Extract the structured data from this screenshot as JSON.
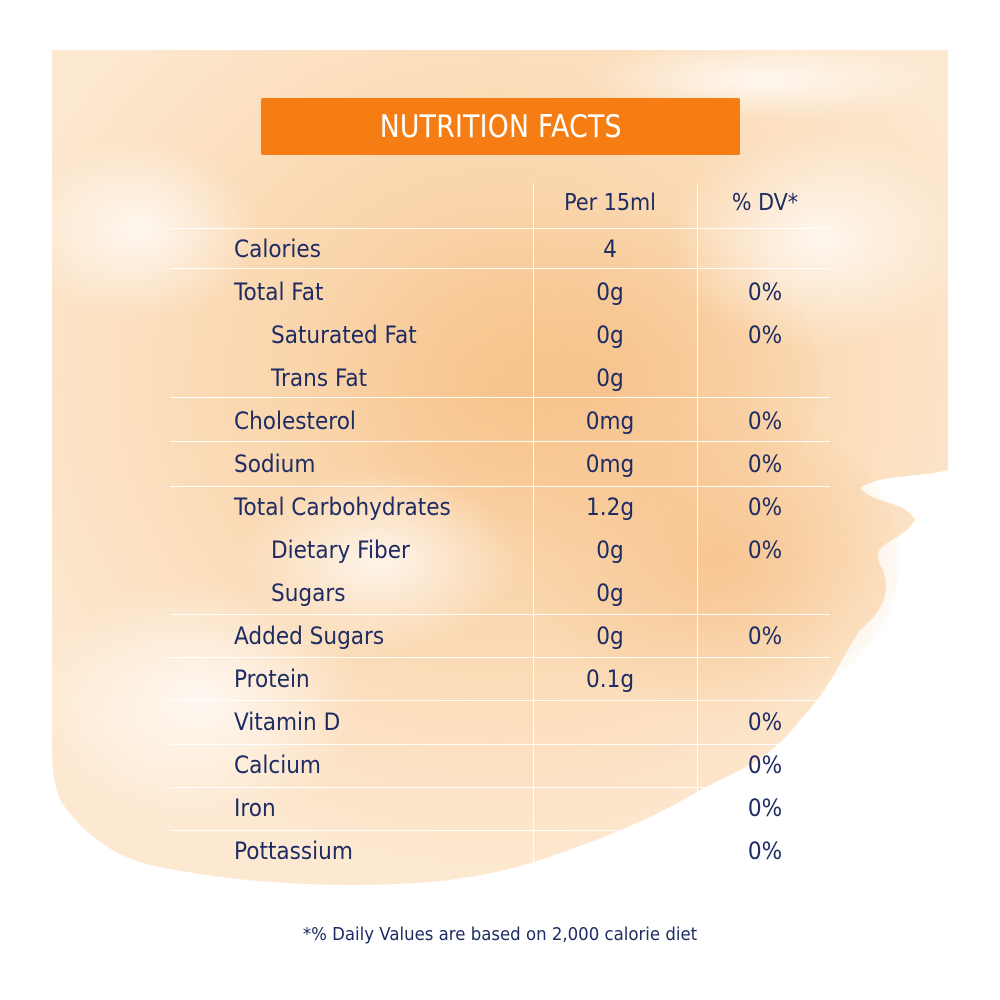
{
  "title": "NUTRITION FACTS",
  "columns": {
    "per_serving": "Per 15ml",
    "daily_value": "% DV*"
  },
  "rows": [
    {
      "name": "Calories",
      "per": "4",
      "dv": "",
      "indent": false
    },
    {
      "name": "Total Fat",
      "per": "0g",
      "dv": "0%",
      "indent": false
    },
    {
      "name": "Saturated Fat",
      "per": "0g",
      "dv": "0%",
      "indent": true
    },
    {
      "name": "Trans Fat",
      "per": "0g",
      "dv": "",
      "indent": true
    },
    {
      "name": "Cholesterol",
      "per": "0mg",
      "dv": "0%",
      "indent": false
    },
    {
      "name": "Sodium",
      "per": "0mg",
      "dv": "0%",
      "indent": false
    },
    {
      "name": "Total Carbohydrates",
      "per": "1.2g",
      "dv": "0%",
      "indent": false
    },
    {
      "name": "Dietary Fiber",
      "per": "0g",
      "dv": "0%",
      "indent": true
    },
    {
      "name": "Sugars",
      "per": "0g",
      "dv": "",
      "indent": true
    },
    {
      "name": "Added Sugars",
      "per": "0g",
      "dv": "0%",
      "indent": false
    },
    {
      "name": "Protein",
      "per": "0.1g",
      "dv": "",
      "indent": false
    },
    {
      "name": "Vitamin D",
      "per": "",
      "dv": "0%",
      "indent": false
    },
    {
      "name": "Calcium",
      "per": "",
      "dv": "0%",
      "indent": false
    },
    {
      "name": "Iron",
      "per": "",
      "dv": "0%",
      "indent": false
    },
    {
      "name": "Pottassium",
      "per": "",
      "dv": "0%",
      "indent": false
    }
  ],
  "footnote": "*% Daily Values are based on 2,000 calorie diet",
  "colors": {
    "accent": "#f57d13",
    "text": "#1e2c63",
    "wash": "#fbdcb8"
  }
}
